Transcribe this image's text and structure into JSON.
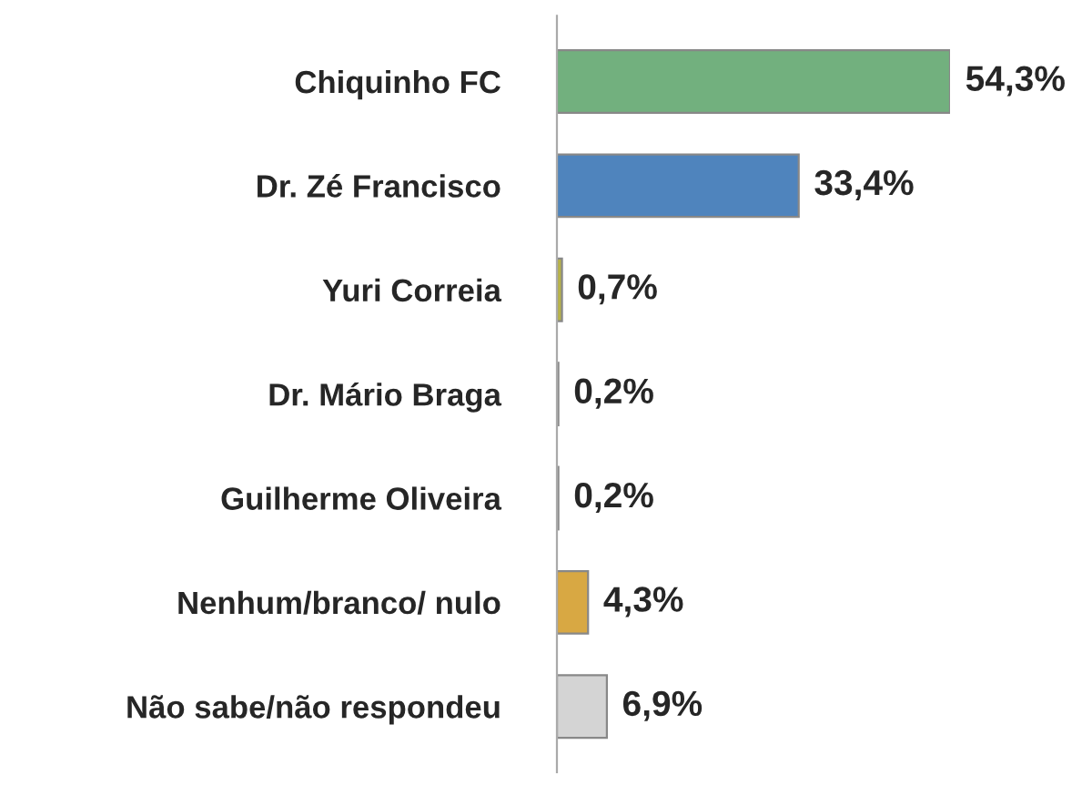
{
  "chart_data": {
    "type": "bar",
    "orientation": "horizontal",
    "categories": [
      "Chiquinho FC",
      "Dr. Zé Francisco",
      "Yuri Correia",
      "Dr. Mário Braga",
      "Guilherme Oliveira",
      "Nenhum/branco/ nulo",
      "Não sabe/não respondeu"
    ],
    "values": [
      54.3,
      33.4,
      0.7,
      0.2,
      0.2,
      4.3,
      6.9
    ],
    "colors": [
      "#72b07e",
      "#4f84bd",
      "#b8b348",
      "#4f8dad",
      "#7d9c62",
      "#d8a843",
      "#d4d4d4"
    ],
    "value_labels": [
      "54,3%",
      "33,4%",
      "0,7%",
      "0,2%",
      "0,2%",
      "4,3%",
      "6,9%"
    ],
    "grid": false,
    "legend": false
  }
}
